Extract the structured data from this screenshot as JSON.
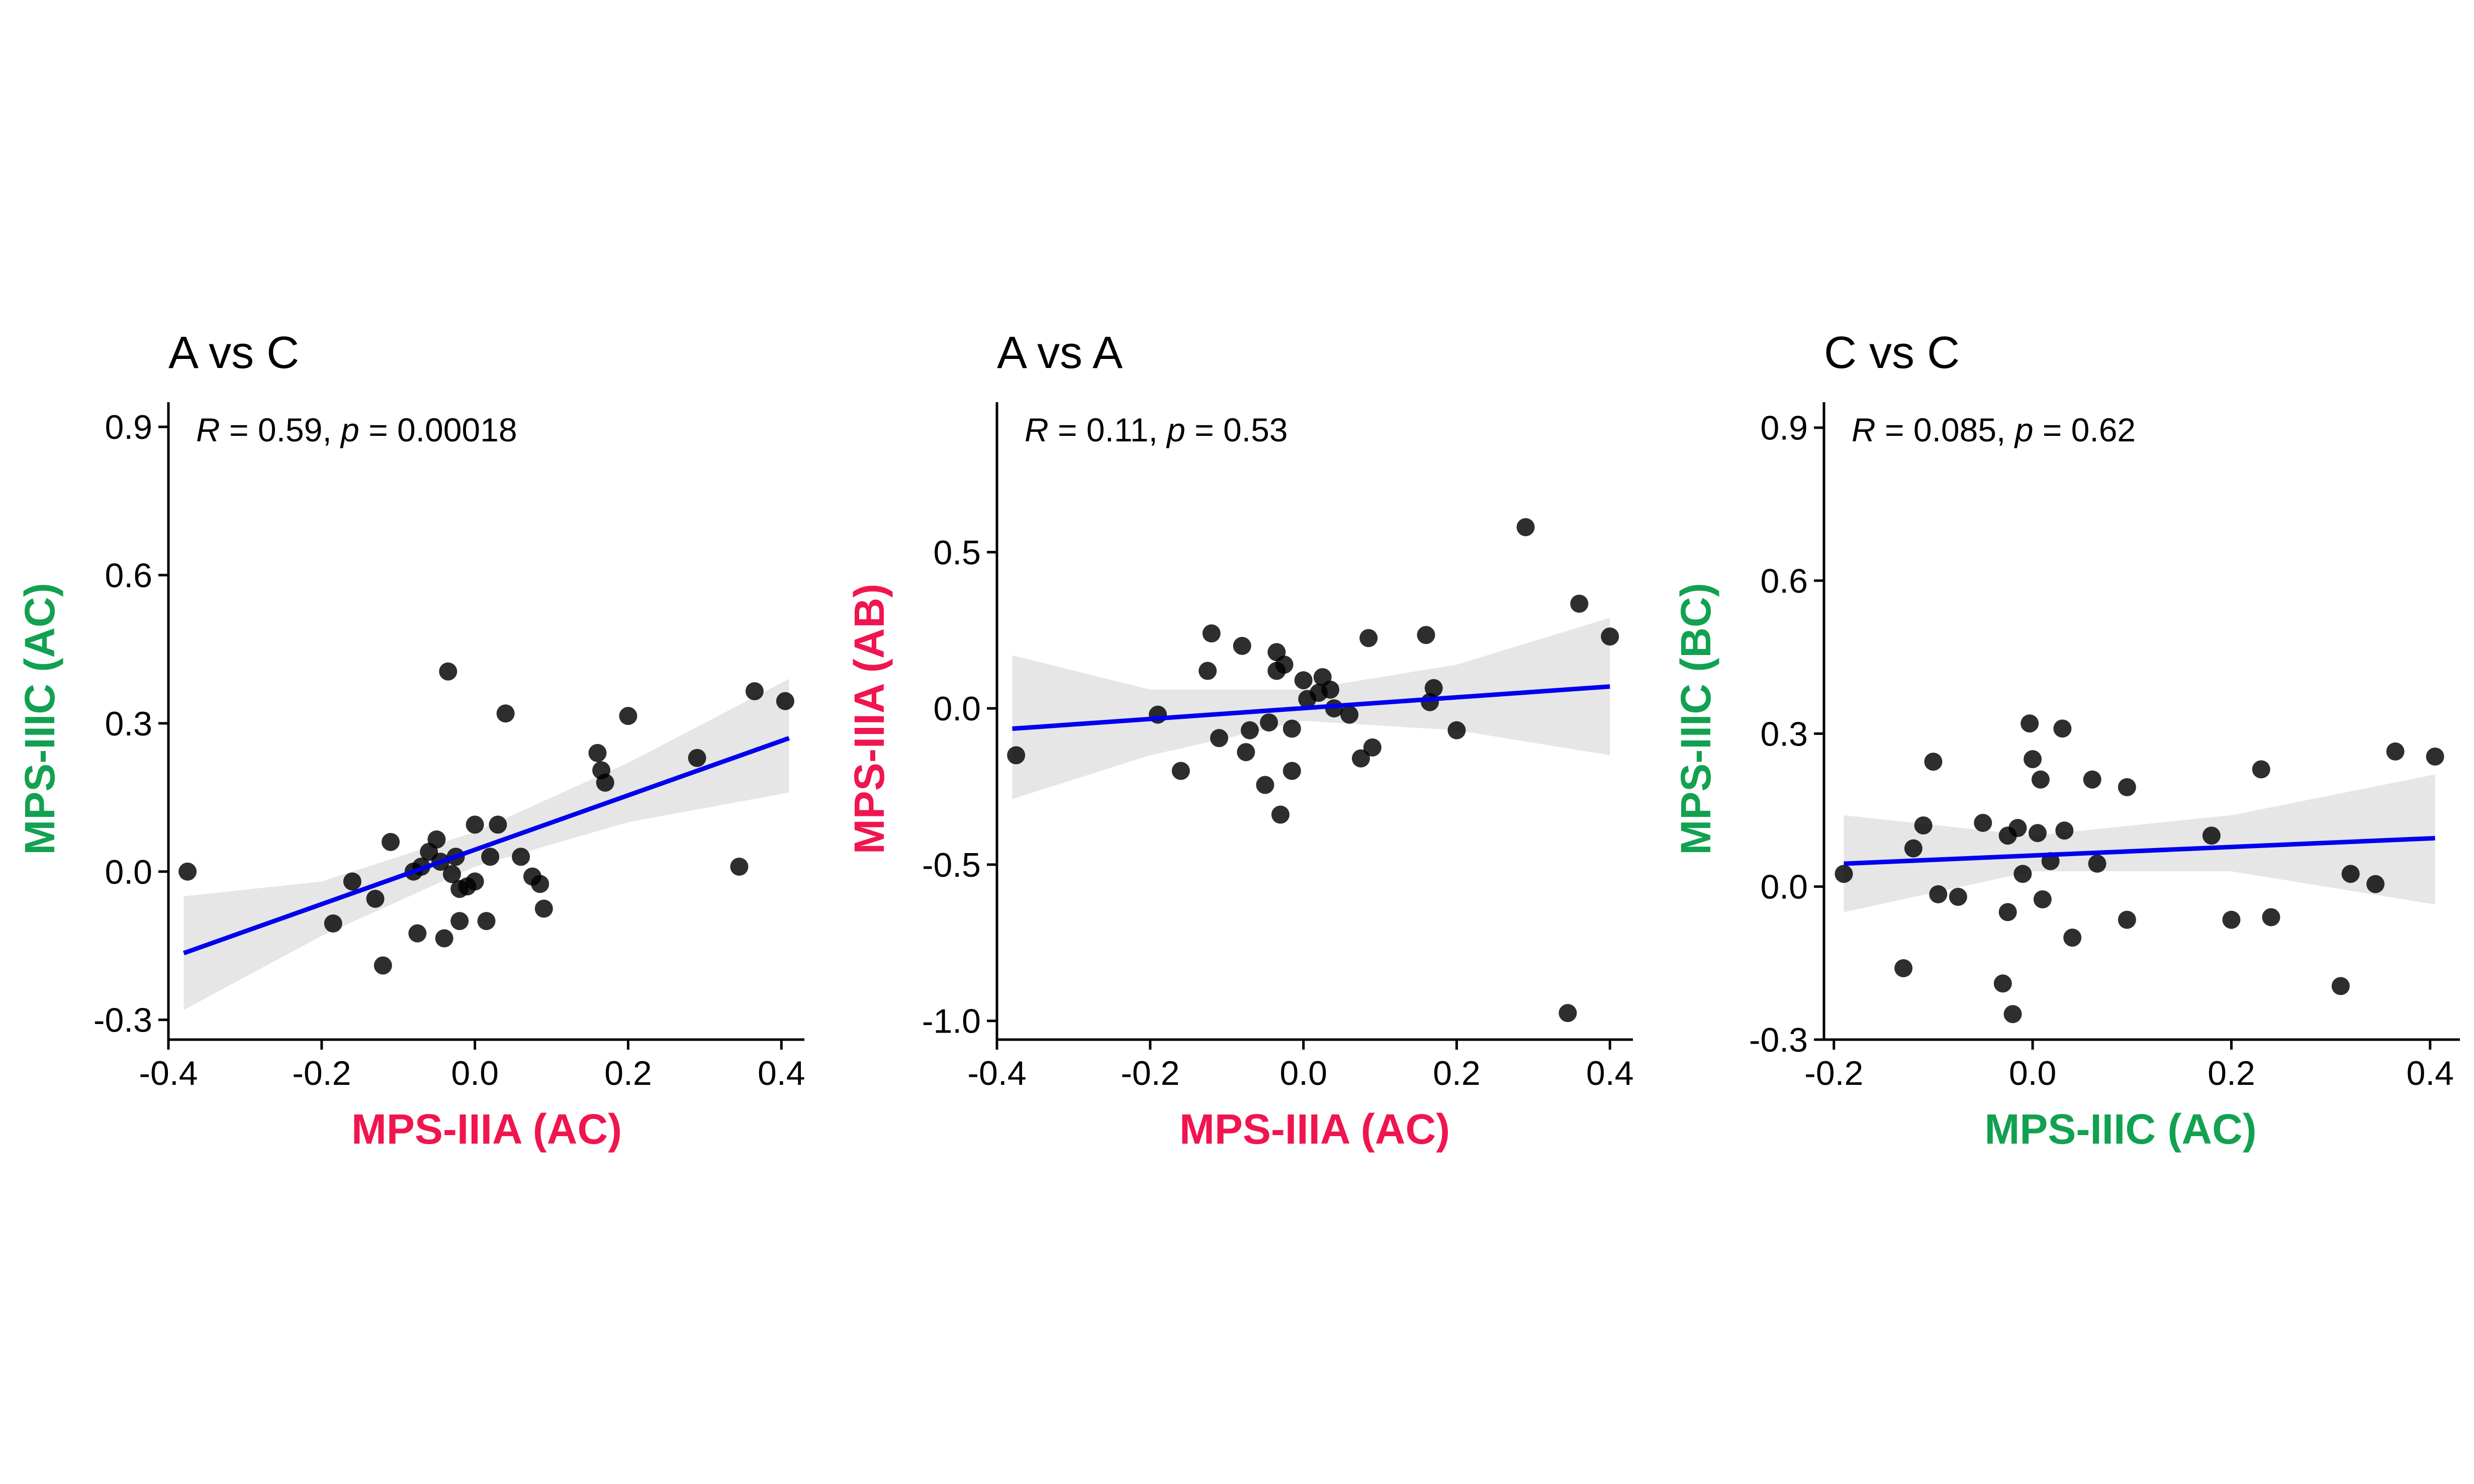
{
  "colors": {
    "mps_iiia": "#f0154f",
    "mps_iiic": "#12a150",
    "regression_line": "#0000ee",
    "confidence_band": "#d9d9d9",
    "point": "#000000"
  },
  "chart_data": [
    {
      "type": "scatter",
      "title": "A vs C",
      "stat": {
        "R_label": "R",
        "R_value": " = 0.59, ",
        "p_label": "p",
        "p_value": " = 0.00018"
      },
      "xlabel": "MPS-IIIA (AC)",
      "ylabel": "MPS-IIIC (AC)",
      "xlabel_color": "mps_iiia",
      "ylabel_color": "mps_iiic",
      "xlim": [
        -0.4,
        0.43
      ],
      "ylim": [
        -0.34,
        0.95
      ],
      "xticks": [
        -0.4,
        -0.2,
        0.0,
        0.2,
        0.4
      ],
      "xtick_labels": [
        "-0.4",
        "-0.2",
        "0.0",
        "0.2",
        "0.4"
      ],
      "yticks": [
        -0.3,
        0.0,
        0.3,
        0.6,
        0.9
      ],
      "ytick_labels": [
        "-0.3",
        "0.0",
        "0.3",
        "0.6",
        "0.9"
      ],
      "regression": {
        "x": [
          -0.38,
          0.41
        ],
        "y": [
          -0.165,
          0.27
        ]
      },
      "band": [
        {
          "x": -0.38,
          "lo": -0.28,
          "hi": -0.05
        },
        {
          "x": -0.2,
          "lo": -0.13,
          "hi": -0.02
        },
        {
          "x": 0.0,
          "lo": 0.01,
          "hi": 0.08
        },
        {
          "x": 0.2,
          "lo": 0.1,
          "hi": 0.22
        },
        {
          "x": 0.41,
          "lo": 0.16,
          "hi": 0.39
        }
      ],
      "points": [
        [
          -0.375,
          0.0
        ],
        [
          -0.185,
          -0.105
        ],
        [
          -0.16,
          -0.02
        ],
        [
          -0.13,
          -0.055
        ],
        [
          -0.12,
          -0.19
        ],
        [
          -0.11,
          0.06
        ],
        [
          -0.08,
          0.0
        ],
        [
          -0.075,
          -0.125
        ],
        [
          -0.07,
          0.01
        ],
        [
          -0.06,
          0.04
        ],
        [
          -0.05,
          0.065
        ],
        [
          -0.045,
          0.02
        ],
        [
          -0.04,
          -0.135
        ],
        [
          -0.035,
          0.405
        ],
        [
          -0.03,
          -0.005
        ],
        [
          -0.025,
          0.03
        ],
        [
          -0.02,
          -0.035
        ],
        [
          -0.02,
          -0.1
        ],
        [
          -0.01,
          -0.03
        ],
        [
          0.0,
          -0.02
        ],
        [
          0.0,
          0.095
        ],
        [
          0.015,
          -0.1
        ],
        [
          0.02,
          0.03
        ],
        [
          0.03,
          0.095
        ],
        [
          0.04,
          0.32
        ],
        [
          0.06,
          0.03
        ],
        [
          0.075,
          -0.01
        ],
        [
          0.085,
          -0.025
        ],
        [
          0.09,
          -0.075
        ],
        [
          0.16,
          0.24
        ],
        [
          0.165,
          0.205
        ],
        [
          0.17,
          0.18
        ],
        [
          0.2,
          0.315
        ],
        [
          0.29,
          0.23
        ],
        [
          0.345,
          0.01
        ],
        [
          0.365,
          0.365
        ],
        [
          0.405,
          0.345
        ]
      ]
    },
    {
      "type": "scatter",
      "title": "A vs A",
      "stat": {
        "R_label": "R",
        "R_value": " = 0.11, ",
        "p_label": "p",
        "p_value": " = 0.53"
      },
      "xlabel": "MPS-IIIA (AC)",
      "ylabel": "MPS-IIIA (AB)",
      "xlabel_color": "mps_iiia",
      "ylabel_color": "mps_iiia",
      "xlim": [
        -0.4,
        0.43
      ],
      "ylim": [
        -1.06,
        0.98
      ],
      "xticks": [
        -0.4,
        -0.2,
        0.0,
        0.2,
        0.4
      ],
      "xtick_labels": [
        "-0.4",
        "-0.2",
        "0.0",
        "0.2",
        "0.4"
      ],
      "yticks": [
        -1.0,
        -0.5,
        0.0,
        0.5
      ],
      "ytick_labels": [
        "-1.0",
        "-0.5",
        "0.0",
        "0.5"
      ],
      "regression": {
        "x": [
          -0.38,
          0.4
        ],
        "y": [
          -0.065,
          0.07
        ]
      },
      "band": [
        {
          "x": -0.38,
          "lo": -0.29,
          "hi": 0.17
        },
        {
          "x": -0.2,
          "lo": -0.15,
          "hi": 0.06
        },
        {
          "x": 0.0,
          "lo": -0.04,
          "hi": 0.06
        },
        {
          "x": 0.2,
          "lo": -0.07,
          "hi": 0.14
        },
        {
          "x": 0.4,
          "lo": -0.15,
          "hi": 0.29
        }
      ],
      "points": [
        [
          -0.375,
          -0.15
        ],
        [
          -0.19,
          -0.02
        ],
        [
          -0.16,
          -0.2
        ],
        [
          -0.125,
          0.12
        ],
        [
          -0.12,
          0.24
        ],
        [
          -0.11,
          -0.095
        ],
        [
          -0.08,
          0.2
        ],
        [
          -0.075,
          -0.14
        ],
        [
          -0.07,
          -0.07
        ],
        [
          -0.05,
          -0.245
        ],
        [
          -0.045,
          -0.045
        ],
        [
          -0.035,
          0.18
        ],
        [
          -0.035,
          0.12
        ],
        [
          -0.03,
          -0.34
        ],
        [
          -0.025,
          0.14
        ],
        [
          -0.015,
          -0.065
        ],
        [
          -0.015,
          -0.2
        ],
        [
          0.0,
          0.09
        ],
        [
          0.005,
          0.03
        ],
        [
          0.02,
          0.05
        ],
        [
          0.025,
          0.1
        ],
        [
          0.035,
          0.06
        ],
        [
          0.04,
          0.0
        ],
        [
          0.06,
          -0.02
        ],
        [
          0.075,
          -0.16
        ],
        [
          0.085,
          0.225
        ],
        [
          0.09,
          -0.125
        ],
        [
          0.16,
          0.235
        ],
        [
          0.165,
          0.02
        ],
        [
          0.17,
          0.065
        ],
        [
          0.2,
          -0.07
        ],
        [
          0.29,
          0.58
        ],
        [
          0.345,
          -0.975
        ],
        [
          0.36,
          0.335
        ],
        [
          0.4,
          0.23
        ]
      ]
    },
    {
      "type": "scatter",
      "title": "C vs C",
      "stat": {
        "R_label": "R",
        "R_value": " = 0.085, ",
        "p_label": "p",
        "p_value": " = 0.62"
      },
      "xlabel": "MPS-IIIC (AC)",
      "ylabel": "MPS-IIIC (BC)",
      "xlabel_color": "mps_iiic",
      "ylabel_color": "mps_iiic",
      "xlim": [
        -0.21,
        0.43
      ],
      "ylim": [
        -0.3,
        0.95
      ],
      "xticks": [
        -0.2,
        0.0,
        0.2,
        0.4
      ],
      "xtick_labels": [
        "-0.2",
        "0.0",
        "0.2",
        "0.4"
      ],
      "yticks": [
        -0.3,
        0.0,
        0.3,
        0.6,
        0.9
      ],
      "ytick_labels": [
        "-0.3",
        "0.0",
        "0.3",
        "0.6",
        "0.9"
      ],
      "regression": {
        "x": [
          -0.19,
          0.405
        ],
        "y": [
          0.045,
          0.095
        ]
      },
      "band": [
        {
          "x": -0.19,
          "lo": -0.05,
          "hi": 0.14
        },
        {
          "x": 0.0,
          "lo": 0.03,
          "hi": 0.1
        },
        {
          "x": 0.2,
          "lo": 0.03,
          "hi": 0.14
        },
        {
          "x": 0.405,
          "lo": -0.035,
          "hi": 0.22
        }
      ],
      "points": [
        [
          -0.19,
          0.025
        ],
        [
          -0.13,
          -0.16
        ],
        [
          -0.12,
          0.075
        ],
        [
          -0.11,
          0.12
        ],
        [
          -0.1,
          0.245
        ],
        [
          -0.095,
          -0.015
        ],
        [
          -0.075,
          -0.02
        ],
        [
          -0.05,
          0.125
        ],
        [
          -0.03,
          -0.19
        ],
        [
          -0.025,
          -0.05
        ],
        [
          -0.025,
          0.1
        ],
        [
          -0.02,
          -0.25
        ],
        [
          -0.015,
          0.115
        ],
        [
          -0.01,
          0.025
        ],
        [
          -0.003,
          0.32
        ],
        [
          0.0,
          0.25
        ],
        [
          0.005,
          0.105
        ],
        [
          0.008,
          0.21
        ],
        [
          0.01,
          -0.025
        ],
        [
          0.018,
          0.05
        ],
        [
          0.03,
          0.31
        ],
        [
          0.032,
          0.11
        ],
        [
          0.04,
          -0.1
        ],
        [
          0.06,
          0.21
        ],
        [
          0.065,
          0.045
        ],
        [
          0.095,
          0.195
        ],
        [
          0.095,
          -0.065
        ],
        [
          0.18,
          0.1
        ],
        [
          0.2,
          -0.065
        ],
        [
          0.23,
          0.23
        ],
        [
          0.24,
          -0.06
        ],
        [
          0.31,
          -0.195
        ],
        [
          0.32,
          0.025
        ],
        [
          0.345,
          0.005
        ],
        [
          0.365,
          0.265
        ],
        [
          0.405,
          0.255
        ]
      ]
    }
  ]
}
